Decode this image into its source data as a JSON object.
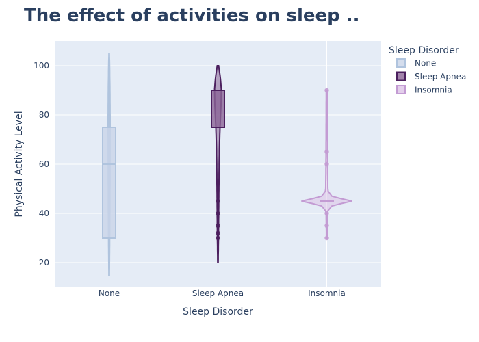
{
  "chart_data": {
    "type": "violin",
    "title": "The effect of activities on sleep ..",
    "xlabel": "Sleep Disorder",
    "ylabel": "Physical Activity Level",
    "categories": [
      "None",
      "Sleep Apnea",
      "Insomnia"
    ],
    "y_ticks": [
      20,
      40,
      60,
      80,
      100
    ],
    "ylim": [
      10,
      110
    ],
    "legend_title": "Sleep Disorder",
    "legend_position": "top-right",
    "grid": true,
    "plot_background": "#e5ecf6",
    "series": [
      {
        "name": "None",
        "line_color": "#b0c4de",
        "fill_color": "#c9d5e8",
        "violin_range": [
          15,
          105
        ],
        "box": {
          "q1": 30,
          "median": 60,
          "q3": 75
        },
        "outliers": []
      },
      {
        "name": "Sleep Apnea",
        "line_color": "#4b1f5e",
        "fill_color": "#8b6496",
        "violin_range": [
          20,
          100
        ],
        "box": {
          "q1": 75,
          "median": 75,
          "q3": 90
        },
        "outliers": [
          45,
          40,
          35,
          32,
          30
        ]
      },
      {
        "name": "Insomnia",
        "line_color": "#c39bd3",
        "fill_color": "#dcc3e6",
        "violin_range": [
          30,
          90
        ],
        "box": {
          "q1": 45,
          "median": 45,
          "q3": 45
        },
        "outliers": [
          90,
          65,
          60,
          40,
          35,
          30
        ]
      }
    ]
  }
}
